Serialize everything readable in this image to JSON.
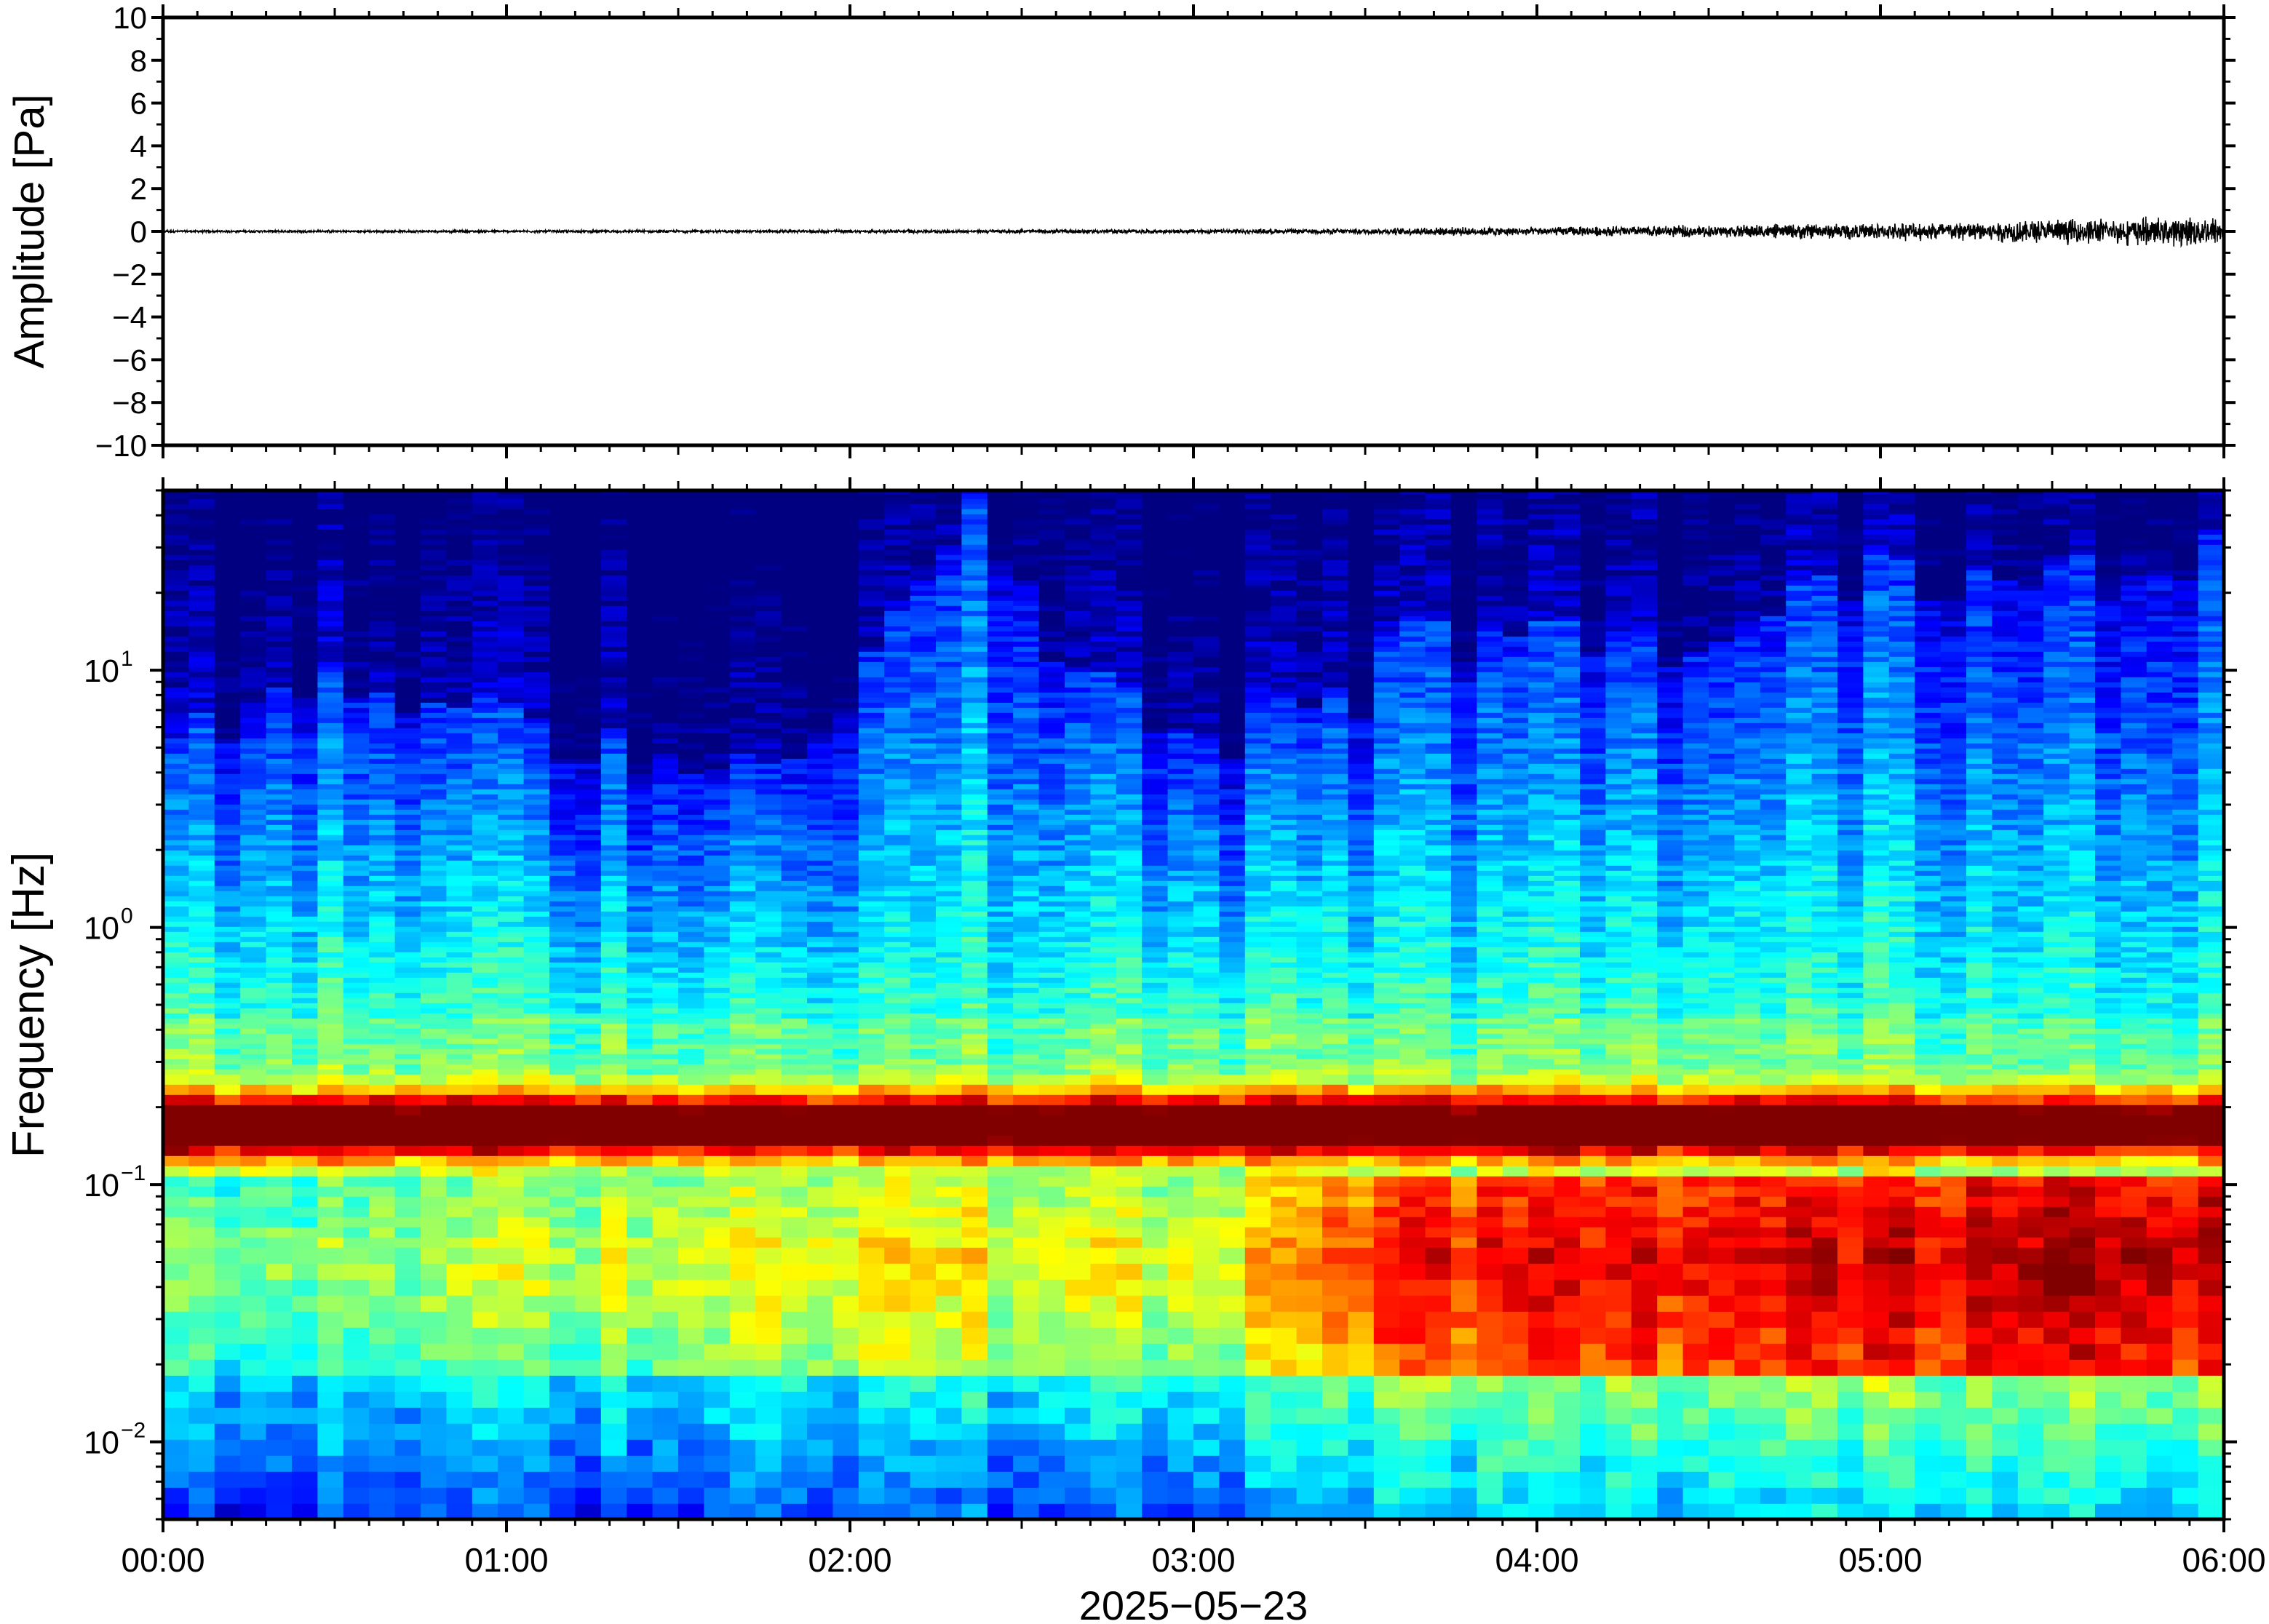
{
  "chart_data": [
    {
      "type": "line",
      "panel": "waveform",
      "ylabel": "Amplitude [Pa]",
      "ylim": [
        -10,
        10
      ],
      "yticks": [
        10,
        8,
        6,
        4,
        2,
        0,
        -2,
        -4,
        -6,
        -8,
        -10
      ],
      "ytick_labels": [
        "10",
        "8",
        "6",
        "4",
        "2",
        "0",
        "−2",
        "−4",
        "−6",
        "−8",
        "−10"
      ],
      "xlim": [
        "00:00",
        "06:00"
      ],
      "line_color": "#000000",
      "trace": {
        "description_points": "envelope amplitude (Pa) vs time (hours)",
        "time_hours": [
          0.0,
          0.5,
          1.0,
          1.5,
          2.0,
          2.5,
          3.0,
          3.5,
          3.8,
          4.0,
          4.5,
          4.8,
          5.0,
          5.3,
          5.5,
          5.8,
          6.0
        ],
        "envelope_pa": [
          0.08,
          0.08,
          0.08,
          0.08,
          0.1,
          0.12,
          0.14,
          0.18,
          0.3,
          0.28,
          0.4,
          0.5,
          0.55,
          0.7,
          0.8,
          0.9,
          1.0
        ]
      }
    },
    {
      "type": "heatmap",
      "panel": "spectrogram",
      "ylabel": "Frequency [Hz]",
      "yscale": "log",
      "ylim": [
        0.005,
        50
      ],
      "ytick_labels": [
        {
          "base": "10",
          "exp": "1",
          "value": 10
        },
        {
          "base": "10",
          "exp": "0",
          "value": 1
        },
        {
          "base": "10",
          "exp": "−1",
          "value": 0.1
        },
        {
          "base": "10",
          "exp": "−2",
          "value": 0.01
        }
      ],
      "xlabel": "2025−05−23",
      "xlim": [
        "00:00",
        "06:00"
      ],
      "xtick_labels": [
        "00:00",
        "01:00",
        "02:00",
        "03:00",
        "04:00",
        "05:00",
        "06:00"
      ],
      "colormap": "jet",
      "features": {
        "microseism_peak_hz": 0.17,
        "upper_noise_edge_hz_by_hour": [
          {
            "t": 0.0,
            "f": 4
          },
          {
            "t": 0.4,
            "f": 9
          },
          {
            "t": 1.0,
            "f": 6
          },
          {
            "t": 1.8,
            "f": 4
          },
          {
            "t": 2.1,
            "f": 12
          },
          {
            "t": 2.4,
            "f": 40
          },
          {
            "t": 2.6,
            "f": 10
          },
          {
            "t": 3.0,
            "f": 5
          },
          {
            "t": 3.5,
            "f": 8
          },
          {
            "t": 3.6,
            "f": 14
          },
          {
            "t": 4.5,
            "f": 12
          },
          {
            "t": 4.9,
            "f": 22
          },
          {
            "t": 5.5,
            "f": 25
          },
          {
            "t": 6.0,
            "f": 30
          }
        ],
        "low_band_energy_by_hour": [
          {
            "t": 0.0,
            "level": 0.45
          },
          {
            "t": 2.0,
            "level": 0.6
          },
          {
            "t": 3.0,
            "level": 0.55
          },
          {
            "t": 3.6,
            "level": 0.78
          },
          {
            "t": 5.0,
            "level": 0.82
          },
          {
            "t": 5.6,
            "level": 0.88
          },
          {
            "t": 6.0,
            "level": 0.85
          }
        ]
      }
    }
  ]
}
